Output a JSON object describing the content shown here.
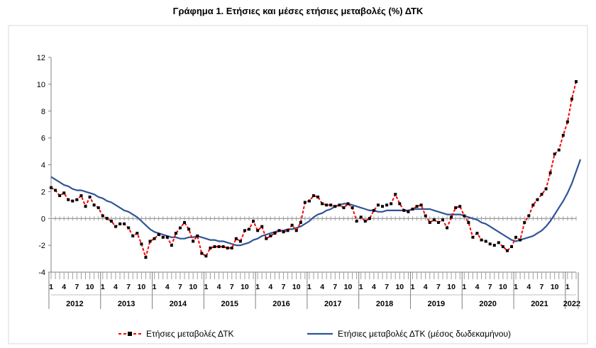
{
  "chart_data": {
    "type": "line",
    "title": "Γράφημα 1. Ετήσιες και μέσες ετήσιες μεταβολές (%) ΔΤΚ",
    "xlabel": "",
    "ylabel": "",
    "ylim": [
      -4,
      12
    ],
    "yticks": [
      -4,
      -2,
      0,
      2,
      4,
      6,
      8,
      10,
      12
    ],
    "grid": false,
    "legend_position": "bottom",
    "month_tick_labels": [
      "1",
      "4",
      "7",
      "10"
    ],
    "years": [
      "2012",
      "2013",
      "2014",
      "2015",
      "2016",
      "2017",
      "2018",
      "2019",
      "2020",
      "2021",
      "2022"
    ],
    "series": [
      {
        "name": "Ετήσιες μεταβολές ΔΤΚ",
        "color": "#ff0000",
        "marker_color": "#000000",
        "style": "dashed-with-markers",
        "values": [
          2.3,
          2.1,
          1.7,
          1.9,
          1.4,
          1.3,
          1.4,
          1.7,
          0.9,
          1.6,
          1.0,
          0.8,
          0.2,
          0.0,
          -0.2,
          -0.6,
          -0.4,
          -0.4,
          -0.7,
          -1.3,
          -1.1,
          -1.9,
          -2.9,
          -1.7,
          -1.5,
          -1.2,
          -1.4,
          -1.4,
          -2.0,
          -1.1,
          -0.7,
          -0.3,
          -0.8,
          -1.7,
          -1.3,
          -2.6,
          -2.8,
          -2.2,
          -2.1,
          -2.1,
          -2.1,
          -2.2,
          -2.2,
          -1.5,
          -1.7,
          -0.9,
          -0.8,
          -0.2,
          -0.9,
          -0.6,
          -1.5,
          -1.3,
          -1.1,
          -0.9,
          -1.0,
          -0.9,
          -0.5,
          -0.9,
          -0.3,
          1.2,
          1.3,
          1.7,
          1.6,
          1.1,
          1.0,
          1.0,
          0.9,
          1.0,
          0.8,
          1.1,
          0.8,
          -0.2,
          0.1,
          -0.2,
          0.0,
          0.6,
          1.0,
          0.9,
          1.0,
          1.1,
          1.8,
          1.1,
          0.6,
          0.5,
          0.7,
          0.9,
          1.0,
          0.2,
          -0.3,
          -0.1,
          -0.3,
          -0.1,
          -0.7,
          0.1,
          0.8,
          0.9,
          0.2,
          -0.3,
          -1.4,
          -1.1,
          -1.6,
          -1.7,
          -1.9,
          -2.0,
          -1.8,
          -2.1,
          -2.4,
          -2.1,
          -1.4,
          -1.6,
          -0.3,
          0.2,
          1.0,
          1.4,
          1.8,
          2.2,
          3.4,
          4.8,
          5.1,
          6.2,
          7.2,
          8.9,
          10.2
        ]
      },
      {
        "name": "Ετήσιες μεταβολές ΔΤΚ (μέσος δωδεκαμήνου)",
        "color": "#2f5597",
        "style": "solid",
        "values": [
          3.1,
          2.9,
          2.7,
          2.5,
          2.4,
          2.2,
          2.1,
          2.1,
          2.0,
          1.9,
          1.8,
          1.6,
          1.5,
          1.3,
          1.2,
          1.0,
          0.8,
          0.6,
          0.5,
          0.3,
          0.1,
          -0.2,
          -0.5,
          -0.8,
          -1.0,
          -1.1,
          -1.2,
          -1.3,
          -1.4,
          -1.4,
          -1.5,
          -1.5,
          -1.4,
          -1.4,
          -1.3,
          -1.4,
          -1.5,
          -1.6,
          -1.6,
          -1.7,
          -1.7,
          -1.8,
          -1.9,
          -2.0,
          -2.0,
          -1.9,
          -1.8,
          -1.6,
          -1.5,
          -1.3,
          -1.2,
          -1.1,
          -1.0,
          -0.9,
          -0.9,
          -0.8,
          -0.8,
          -0.7,
          -0.6,
          -0.4,
          -0.2,
          0.1,
          0.3,
          0.4,
          0.6,
          0.7,
          0.9,
          1.0,
          1.1,
          1.1,
          1.0,
          0.9,
          0.8,
          0.7,
          0.6,
          0.6,
          0.5,
          0.5,
          0.6,
          0.6,
          0.6,
          0.6,
          0.6,
          0.6,
          0.7,
          0.7,
          0.7,
          0.7,
          0.7,
          0.6,
          0.5,
          0.4,
          0.3,
          0.3,
          0.3,
          0.3,
          0.2,
          0.1,
          0.0,
          -0.1,
          -0.3,
          -0.4,
          -0.6,
          -0.8,
          -1.0,
          -1.2,
          -1.4,
          -1.6,
          -1.7,
          -1.6,
          -1.5,
          -1.4,
          -1.3,
          -1.1,
          -0.9,
          -0.6,
          -0.2,
          0.3,
          0.8,
          1.3,
          1.9,
          2.6,
          3.5,
          4.4
        ]
      }
    ]
  }
}
